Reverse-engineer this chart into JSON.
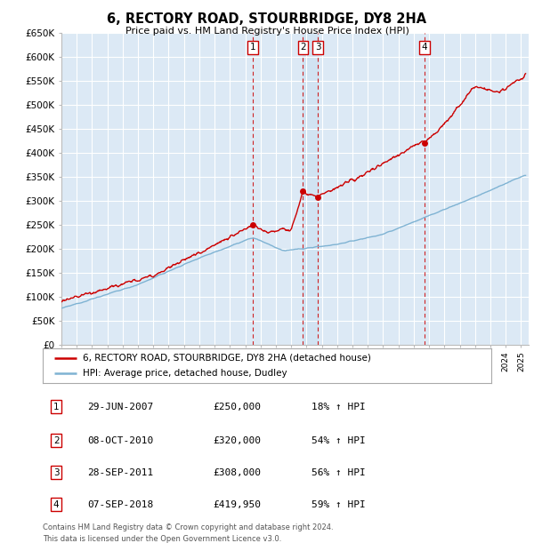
{
  "title": "6, RECTORY ROAD, STOURBRIDGE, DY8 2HA",
  "subtitle": "Price paid vs. HM Land Registry's House Price Index (HPI)",
  "ylabel_ticks": [
    "£0",
    "£50K",
    "£100K",
    "£150K",
    "£200K",
    "£250K",
    "£300K",
    "£350K",
    "£400K",
    "£450K",
    "£500K",
    "£550K",
    "£600K",
    "£650K"
  ],
  "ytick_values": [
    0,
    50000,
    100000,
    150000,
    200000,
    250000,
    300000,
    350000,
    400000,
    450000,
    500000,
    550000,
    600000,
    650000
  ],
  "background_color": "#ffffff",
  "plot_bg_color": "#dce9f5",
  "grid_color": "#ffffff",
  "red_line_color": "#cc0000",
  "blue_line_color": "#7fb3d3",
  "sale_marker_color": "#cc0000",
  "sales": [
    {
      "num": 1,
      "date_x": 2007.49,
      "price": 250000,
      "label": "29-JUN-2007",
      "amount": "£250,000",
      "hpi": "18% ↑ HPI"
    },
    {
      "num": 2,
      "date_x": 2010.77,
      "price": 320000,
      "label": "08-OCT-2010",
      "amount": "£320,000",
      "hpi": "54% ↑ HPI"
    },
    {
      "num": 3,
      "date_x": 2011.74,
      "price": 308000,
      "label": "28-SEP-2011",
      "amount": "£308,000",
      "hpi": "56% ↑ HPI"
    },
    {
      "num": 4,
      "date_x": 2018.68,
      "price": 419950,
      "label": "07-SEP-2018",
      "amount": "£419,950",
      "hpi": "59% ↑ HPI"
    }
  ],
  "legend_line1": "6, RECTORY ROAD, STOURBRIDGE, DY8 2HA (detached house)",
  "legend_line2": "HPI: Average price, detached house, Dudley",
  "footer1": "Contains HM Land Registry data © Crown copyright and database right 2024.",
  "footer2": "This data is licensed under the Open Government Licence v3.0.",
  "xmin": 1995.0,
  "xmax": 2025.5,
  "ymin": 0,
  "ymax": 650000
}
